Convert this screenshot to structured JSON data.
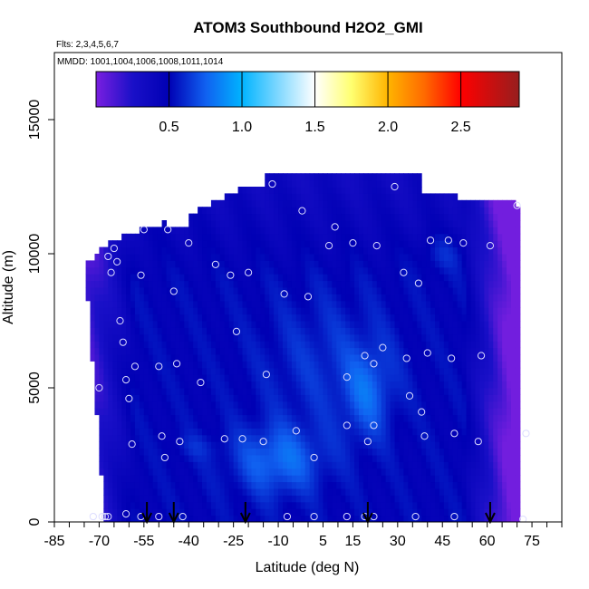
{
  "chart_data": {
    "type": "heatmap",
    "title": "ATOM3 Southbound H2O2_GMI",
    "subtitle_flights": "Flts: 2,3,4,5,6,7",
    "subtitle_dates": "MMDD: 1001,1004,1006,1008,1011,1014",
    "xlabel": "Latitude (deg N)",
    "ylabel": "Altitude (m)",
    "xlim": [
      -85,
      85
    ],
    "ylim": [
      0,
      17500
    ],
    "x_ticks": [
      -85,
      -70,
      -55,
      -40,
      -25,
      -10,
      5,
      15,
      30,
      45,
      60,
      75
    ],
    "y_ticks": [
      0,
      5000,
      10000,
      15000
    ],
    "colorbar": {
      "range": [
        0,
        2.9
      ],
      "ticks": [
        0.5,
        1.0,
        1.5,
        2.0,
        2.5
      ],
      "tick_labels": [
        "0.5",
        "1.0",
        "1.5",
        "2.0",
        "2.5"
      ],
      "stops": [
        {
          "v": 0.0,
          "c": "#7a1fe0"
        },
        {
          "v": 0.25,
          "c": "#1a10c8"
        },
        {
          "v": 0.5,
          "c": "#0000b4"
        },
        {
          "v": 0.75,
          "c": "#1060f0"
        },
        {
          "v": 1.0,
          "c": "#00b4ff"
        },
        {
          "v": 1.25,
          "c": "#80d8ff"
        },
        {
          "v": 1.5,
          "c": "#ffffff"
        },
        {
          "v": 1.75,
          "c": "#ffff70"
        },
        {
          "v": 2.0,
          "c": "#ffb400"
        },
        {
          "v": 2.25,
          "c": "#ff6a00"
        },
        {
          "v": 2.5,
          "c": "#ff0000"
        },
        {
          "v": 2.9,
          "c": "#961e1e"
        }
      ]
    },
    "profile_latitudes": [
      -54,
      -45,
      -21,
      20,
      61
    ],
    "observations": [
      {
        "x": -70,
        "y": 5000
      },
      {
        "x": -67,
        "y": 9900
      },
      {
        "x": -66,
        "y": 9300
      },
      {
        "x": -65,
        "y": 10200
      },
      {
        "x": -64,
        "y": 9700
      },
      {
        "x": -63,
        "y": 7500
      },
      {
        "x": -62,
        "y": 6700
      },
      {
        "x": -61,
        "y": 5300
      },
      {
        "x": -60,
        "y": 4600
      },
      {
        "x": -59,
        "y": 2900
      },
      {
        "x": -58,
        "y": 5800
      },
      {
        "x": -56,
        "y": 9200
      },
      {
        "x": -55,
        "y": 10900
      },
      {
        "x": -50,
        "y": 5800
      },
      {
        "x": -49,
        "y": 3200
      },
      {
        "x": -48,
        "y": 2400
      },
      {
        "x": -47,
        "y": 10900
      },
      {
        "x": -45,
        "y": 8600
      },
      {
        "x": -44,
        "y": 5900
      },
      {
        "x": -43,
        "y": 3000
      },
      {
        "x": -40,
        "y": 10400
      },
      {
        "x": -36,
        "y": 5200
      },
      {
        "x": -31,
        "y": 9600
      },
      {
        "x": -28,
        "y": 3100
      },
      {
        "x": -26,
        "y": 9200
      },
      {
        "x": -24,
        "y": 7100
      },
      {
        "x": -22,
        "y": 3100
      },
      {
        "x": -20,
        "y": 9300
      },
      {
        "x": -15,
        "y": 3000
      },
      {
        "x": -14,
        "y": 5500
      },
      {
        "x": -12,
        "y": 12600
      },
      {
        "x": -8,
        "y": 8500
      },
      {
        "x": -4,
        "y": 3400
      },
      {
        "x": -2,
        "y": 11600
      },
      {
        "x": 0,
        "y": 8400
      },
      {
        "x": 2,
        "y": 2400
      },
      {
        "x": 7,
        "y": 10300
      },
      {
        "x": 9,
        "y": 11000
      },
      {
        "x": 13,
        "y": 5400
      },
      {
        "x": 13,
        "y": 3600
      },
      {
        "x": 15,
        "y": 10400
      },
      {
        "x": 19,
        "y": 6200
      },
      {
        "x": 20,
        "y": 3000
      },
      {
        "x": 22,
        "y": 5900
      },
      {
        "x": 22,
        "y": 3600
      },
      {
        "x": 23,
        "y": 10300
      },
      {
        "x": 25,
        "y": 6500
      },
      {
        "x": 29,
        "y": 12500
      },
      {
        "x": 32,
        "y": 9300
      },
      {
        "x": 33,
        "y": 6100
      },
      {
        "x": 34,
        "y": 4700
      },
      {
        "x": 37,
        "y": 8900
      },
      {
        "x": 38,
        "y": 4100
      },
      {
        "x": 39,
        "y": 3200
      },
      {
        "x": 40,
        "y": 6300
      },
      {
        "x": 41,
        "y": 10500
      },
      {
        "x": 47,
        "y": 10500
      },
      {
        "x": 48,
        "y": 6100
      },
      {
        "x": 49,
        "y": 3300
      },
      {
        "x": 52,
        "y": 10400
      },
      {
        "x": 57,
        "y": 3000
      },
      {
        "x": 58,
        "y": 6200
      },
      {
        "x": 61,
        "y": 10300
      },
      {
        "x": 70,
        "y": 11800
      },
      {
        "x": 73,
        "y": 3300
      },
      {
        "x": -72,
        "y": 200
      },
      {
        "x": -69,
        "y": 200
      },
      {
        "x": -68,
        "y": 200
      },
      {
        "x": -67,
        "y": 200
      },
      {
        "x": -61,
        "y": 300
      },
      {
        "x": -56,
        "y": 200
      },
      {
        "x": -50,
        "y": 200
      },
      {
        "x": -42,
        "y": 200
      },
      {
        "x": -7,
        "y": 200
      },
      {
        "x": 2,
        "y": 200
      },
      {
        "x": 13,
        "y": 200
      },
      {
        "x": 19,
        "y": 200
      },
      {
        "x": 22,
        "y": 200
      },
      {
        "x": 36,
        "y": 200
      },
      {
        "x": 49,
        "y": 200
      },
      {
        "x": 72,
        "y": 100
      }
    ]
  }
}
